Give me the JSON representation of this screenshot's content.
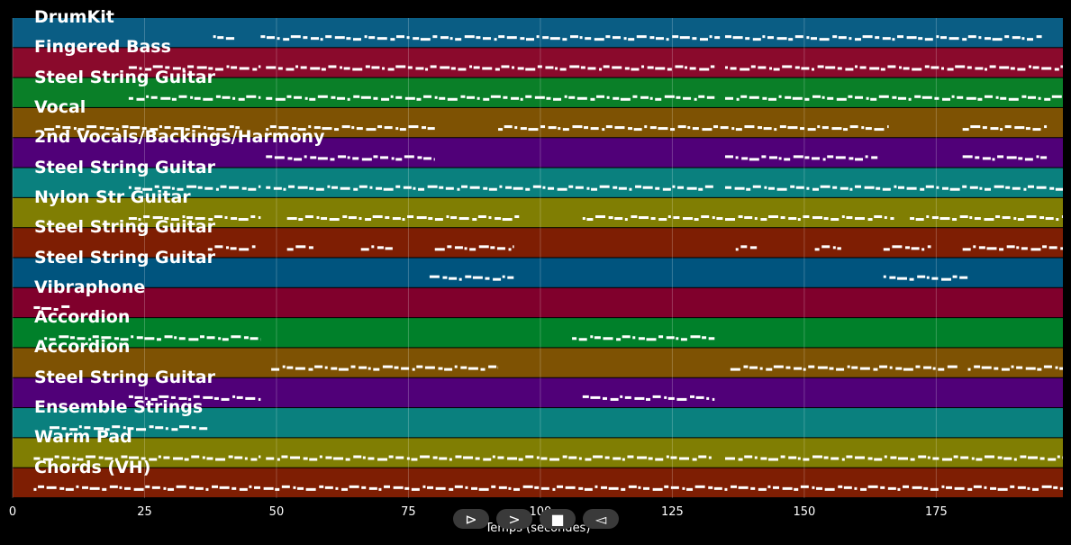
{
  "axis": {
    "title": "Temps (secondes)",
    "ticks": [
      0,
      25,
      50,
      75,
      100,
      125,
      150,
      175
    ],
    "range": [
      0,
      199
    ]
  },
  "tracks": [
    {
      "name": "DrumKit",
      "color": "#0a5d84",
      "segments": [
        [
          38,
          42
        ],
        [
          47,
          134
        ],
        [
          135,
          195
        ]
      ]
    },
    {
      "name": "Fingered Bass",
      "color": "#8a0a2c",
      "segments": [
        [
          22,
          47
        ],
        [
          48,
          133
        ],
        [
          135,
          199
        ]
      ]
    },
    {
      "name": "Steel String Guitar",
      "color": "#0a7f28",
      "segments": [
        [
          22,
          47
        ],
        [
          48,
          133
        ],
        [
          135,
          199
        ]
      ]
    },
    {
      "name": "Vocal",
      "color": "#7e5203",
      "segments": [
        [
          6,
          43
        ],
        [
          48,
          80
        ],
        [
          92,
          166
        ],
        [
          180,
          196
        ]
      ]
    },
    {
      "name": "2nd Vocals/Backings/Harmony",
      "color": "#500078",
      "segments": [
        [
          48,
          80
        ],
        [
          135,
          164
        ],
        [
          180,
          196
        ]
      ]
    },
    {
      "name": "Steel String Guitar",
      "color": "#0a807e",
      "segments": [
        [
          22,
          47
        ],
        [
          48,
          133
        ],
        [
          135,
          199
        ]
      ]
    },
    {
      "name": "Nylon Str Guitar",
      "color": "#807e03",
      "segments": [
        [
          22,
          47
        ],
        [
          52,
          96
        ],
        [
          108,
          167
        ],
        [
          170,
          199
        ]
      ]
    },
    {
      "name": "Steel String Guitar",
      "color": "#7e1e03",
      "segments": [
        [
          37,
          46
        ],
        [
          52,
          57
        ],
        [
          66,
          72
        ],
        [
          80,
          95
        ],
        [
          137,
          141
        ],
        [
          152,
          157
        ],
        [
          165,
          174
        ],
        [
          180,
          199
        ]
      ]
    },
    {
      "name": "Steel String Guitar",
      "color": "#00547e",
      "segments": [
        [
          79,
          95
        ],
        [
          165,
          181
        ]
      ]
    },
    {
      "name": "Vibraphone",
      "color": "#80002c",
      "segments": [
        [
          4,
          11
        ]
      ]
    },
    {
      "name": "Accordion",
      "color": "#00802a",
      "segments": [
        [
          6,
          47
        ],
        [
          106,
          133
        ]
      ]
    },
    {
      "name": "Accordion",
      "color": "#7e5203",
      "segments": [
        [
          49,
          92
        ],
        [
          136,
          179
        ],
        [
          181,
          199
        ]
      ]
    },
    {
      "name": "Steel String Guitar",
      "color": "#500078",
      "segments": [
        [
          22,
          47
        ],
        [
          108,
          133
        ]
      ]
    },
    {
      "name": "Ensemble Strings",
      "color": "#0a807e",
      "segments": [
        [
          7,
          37
        ]
      ]
    },
    {
      "name": "Warm Pad",
      "color": "#807e03",
      "segments": [
        [
          4,
          47
        ],
        [
          48,
          133
        ],
        [
          135,
          199
        ]
      ]
    },
    {
      "name": "Chords (VH)",
      "color": "#7e1e03",
      "segments": [
        [
          4,
          199
        ]
      ]
    }
  ],
  "controls": [
    {
      "name": "play-icon",
      "glyph": "⊳"
    },
    {
      "name": "forward-icon",
      "glyph": ">"
    },
    {
      "name": "stop-icon",
      "glyph": "■"
    },
    {
      "name": "rewind-icon",
      "glyph": "◅"
    }
  ]
}
